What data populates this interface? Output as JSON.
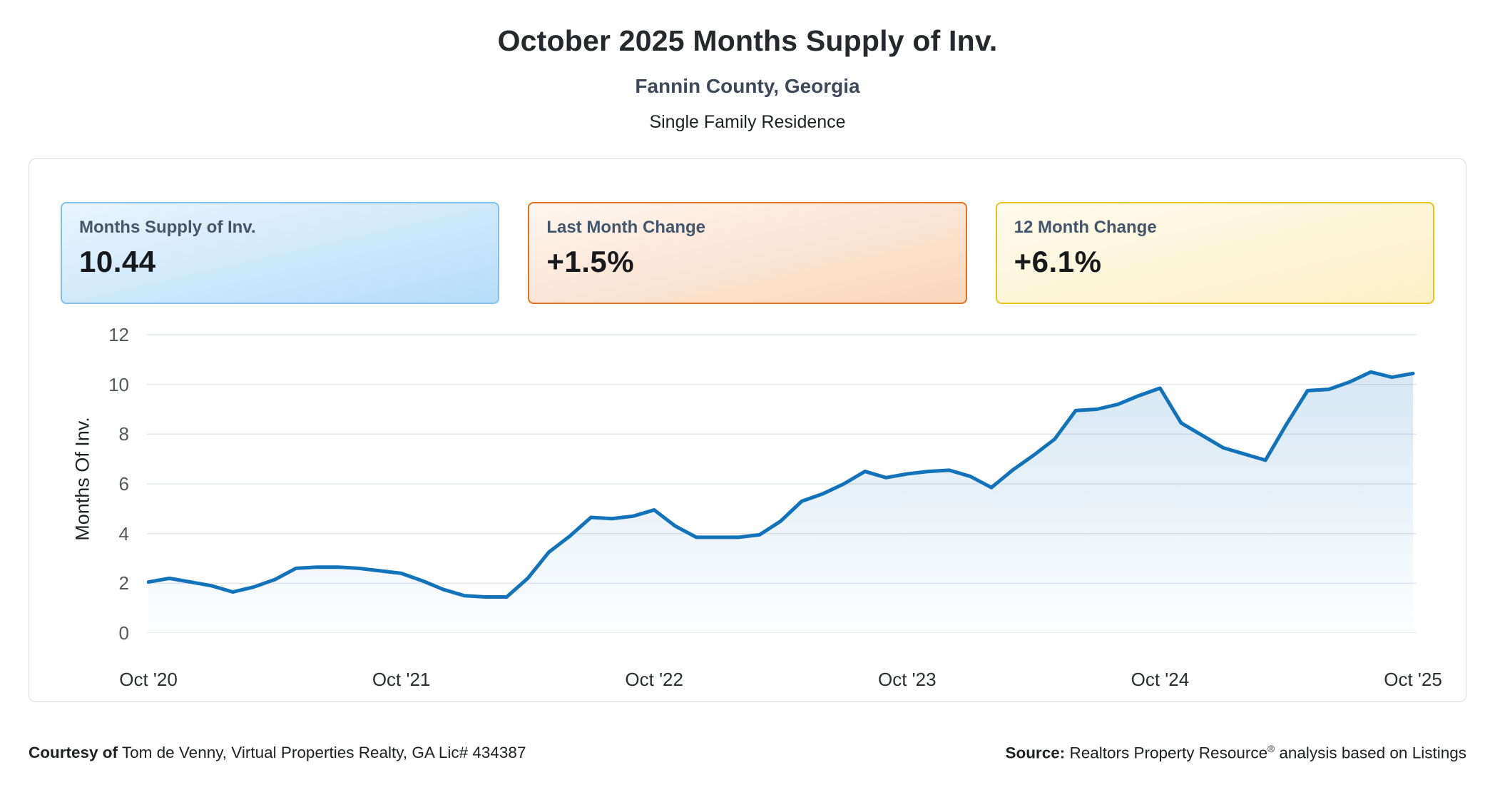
{
  "header": {
    "title": "October 2025 Months Supply of Inv.",
    "subtitle": "Fannin County, Georgia",
    "subtype": "Single Family Residence"
  },
  "cards": [
    {
      "label": "Months Supply of Inv.",
      "value": "10.44",
      "border_color": "#7fc0ec",
      "bg_from": "#eaf5fd",
      "bg_to": "#b5ddf9"
    },
    {
      "label": "Last Month Change",
      "value": "+1.5%",
      "border_color": "#e0711d",
      "bg_from": "#fdf6f0",
      "bg_to": "#f8d6ba"
    },
    {
      "label": "12 Month Change",
      "value": "+6.1%",
      "border_color": "#e4c41f",
      "bg_from": "#fefaed",
      "bg_to": "#fcf0c6"
    }
  ],
  "chart_data": {
    "type": "area",
    "title": "October 2025 Months Supply of Inv.",
    "xlabel": "",
    "ylabel": "Months Of Inv.",
    "ylim": [
      0,
      12
    ],
    "y_ticks": [
      0,
      2,
      4,
      6,
      8,
      10,
      12
    ],
    "grid": true,
    "legend_position": "none",
    "line_color": "#1273ba",
    "area_fill_color": "#1471b9",
    "x_tick_labels": [
      "Oct '20",
      "Oct '21",
      "Oct '22",
      "Oct '23",
      "Oct '24",
      "Oct '25"
    ],
    "x_tick_month_index": [
      0,
      12,
      24,
      36,
      48,
      60
    ],
    "months": [
      "Oct '20",
      "Nov '20",
      "Dec '20",
      "Jan '21",
      "Feb '21",
      "Mar '21",
      "Apr '21",
      "May '21",
      "Jun '21",
      "Jul '21",
      "Aug '21",
      "Sep '21",
      "Oct '21",
      "Nov '21",
      "Dec '21",
      "Jan '22",
      "Feb '22",
      "Mar '22",
      "Apr '22",
      "May '22",
      "Jun '22",
      "Jul '22",
      "Aug '22",
      "Sep '22",
      "Oct '22",
      "Nov '22",
      "Dec '22",
      "Jan '23",
      "Feb '23",
      "Mar '23",
      "Apr '23",
      "May '23",
      "Jun '23",
      "Jul '23",
      "Aug '23",
      "Sep '23",
      "Oct '23",
      "Nov '23",
      "Dec '23",
      "Jan '24",
      "Feb '24",
      "Mar '24",
      "Apr '24",
      "May '24",
      "Jun '24",
      "Jul '24",
      "Aug '24",
      "Sep '24",
      "Oct '24",
      "Nov '24",
      "Dec '24",
      "Jan '25",
      "Feb '25",
      "Mar '25",
      "Apr '25",
      "May '25",
      "Jun '25",
      "Jul '25",
      "Aug '25",
      "Sep '25",
      "Oct '25"
    ],
    "values": [
      2.05,
      2.2,
      2.05,
      1.9,
      1.65,
      1.85,
      2.15,
      2.6,
      2.65,
      2.65,
      2.6,
      2.5,
      2.4,
      2.1,
      1.75,
      1.5,
      1.45,
      1.45,
      2.2,
      3.25,
      3.9,
      4.65,
      4.6,
      4.7,
      4.95,
      4.3,
      3.85,
      3.85,
      3.85,
      3.95,
      4.5,
      5.3,
      5.6,
      6.0,
      6.5,
      6.25,
      6.4,
      6.5,
      6.55,
      6.3,
      5.85,
      6.55,
      7.15,
      7.8,
      8.95,
      9.0,
      9.2,
      9.55,
      9.85,
      8.45,
      7.95,
      7.45,
      7.2,
      6.95,
      8.4,
      9.75,
      9.8,
      10.1,
      10.5,
      10.29,
      10.44
    ]
  },
  "footer": {
    "courtesy_label": "Courtesy of",
    "courtesy_text": "Tom de Venny, Virtual Properties Realty, GA Lic# 434387",
    "source_label": "Source:",
    "source_text_1": "Realtors Property Resource",
    "source_sup": "®",
    "source_text_2": "analysis based on Listings"
  }
}
